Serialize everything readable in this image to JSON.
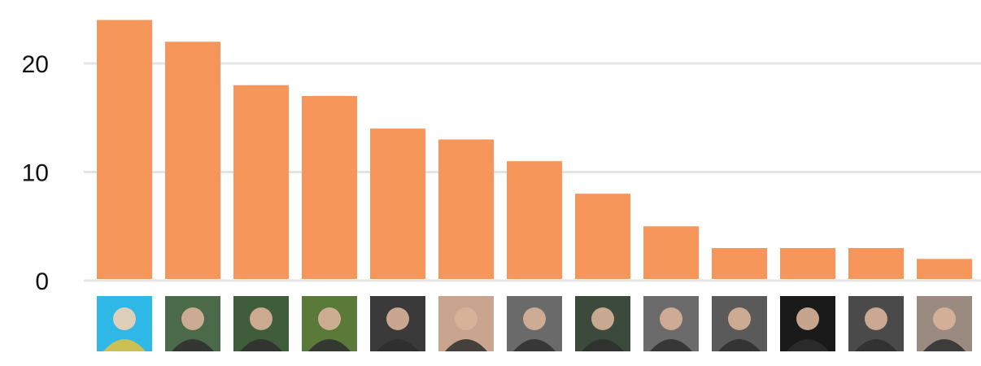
{
  "chart_data": {
    "type": "bar",
    "title": "",
    "xlabel": "",
    "ylabel": "",
    "ylim": [
      0,
      24.5
    ],
    "yticks": [
      0,
      10,
      20
    ],
    "grid": true,
    "bar_color": "#f7965a",
    "categories": [
      "contributor-1-avatar",
      "contributor-2-avatar",
      "contributor-3-avatar",
      "contributor-4-avatar",
      "contributor-5-avatar",
      "contributor-6-avatar",
      "contributor-7-avatar",
      "contributor-8-avatar",
      "contributor-9-avatar",
      "contributor-10-avatar",
      "contributor-11-avatar",
      "contributor-12-avatar",
      "contributor-13-avatar"
    ],
    "values": [
      24,
      22,
      18,
      17,
      14,
      13,
      11,
      8,
      5,
      3,
      3,
      3,
      2
    ],
    "avatar_colors": [
      "#2fb7e8",
      "#4a6a4a",
      "#3f5d3a",
      "#5a7a3a",
      "#3a3a3a",
      "#c9a590",
      "#6a6a6a",
      "#3b4a3b",
      "#6b6b6b",
      "#5a5a5a",
      "#1a1a1a",
      "#4a4a4a",
      "#9a8a80"
    ]
  }
}
